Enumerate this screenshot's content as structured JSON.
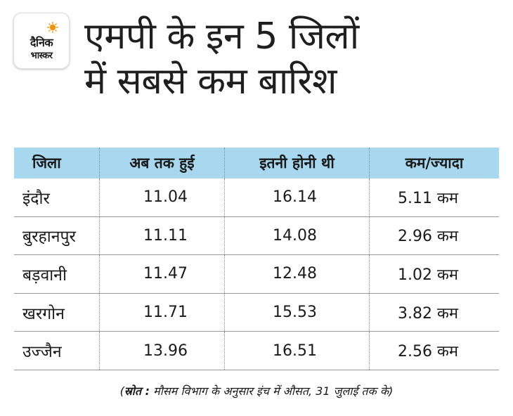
{
  "logo": {
    "line1": "दैनिक",
    "line2": "भास्कर",
    "sun_color": "#f39200"
  },
  "headline": {
    "line1": "एमपी के इन 5 जिलों",
    "line2": "में सबसे कम बारिश"
  },
  "table": {
    "header_color": "#a8d8ef",
    "columns": [
      "जिला",
      "अब तक हुई",
      "इतनी होनी थी",
      "कम/ज्यादा"
    ],
    "rows": [
      [
        "इंदौर",
        "11.04",
        "16.14",
        "5.11 कम"
      ],
      [
        "बुरहानपुर",
        "11.11",
        "14.08",
        "2.96 कम"
      ],
      [
        "बड़वानी",
        "11.47",
        "12.48",
        "1.02 कम"
      ],
      [
        "खरगोन",
        "11.71",
        "15.53",
        "3.82 कम"
      ],
      [
        "उज्जैन",
        "13.96",
        "16.51",
        "2.56 कम"
      ]
    ]
  },
  "source": {
    "open": "(",
    "label": "स्रोत :",
    "text": " मौसम विभाग के अनुसार इंच में औसत, 31 जुलाई तक के)"
  }
}
